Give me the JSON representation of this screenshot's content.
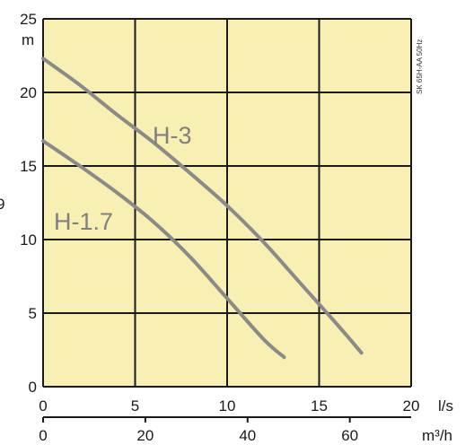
{
  "chart_data": {
    "type": "line",
    "side_note": "SK 65H-AA 50Hz",
    "y_unit": "m",
    "x_unit": "l/s",
    "x2_unit": "m³/h",
    "edge_glyph": "9",
    "ylim": [
      0,
      25
    ],
    "xlim": [
      0,
      20
    ],
    "y_ticks": [
      0,
      5,
      10,
      15,
      20,
      25
    ],
    "x_ticks": [
      0,
      5,
      10,
      15,
      20
    ],
    "x2_ticks": [
      0,
      20,
      40,
      60
    ],
    "x2_per_x": 3.6,
    "grid": true,
    "colors": {
      "plot_bg": "#f8efb3",
      "grid": "#1a1a1a",
      "series": "#8a8a8a",
      "text": "#1a1a1a"
    },
    "series": [
      {
        "name": "H-3",
        "x": [
          0,
          2,
          4,
          6,
          8,
          10,
          12,
          14,
          16,
          17.3
        ],
        "y": [
          22.3,
          20.5,
          18.5,
          16.6,
          14.5,
          12.3,
          9.8,
          7.0,
          4.2,
          2.3
        ]
      },
      {
        "name": "H-1.7",
        "x": [
          0,
          2,
          4,
          6,
          8,
          10,
          12,
          13.1
        ],
        "y": [
          16.7,
          15.0,
          13.2,
          11.2,
          8.8,
          6.0,
          3.2,
          2.0
        ]
      }
    ]
  }
}
